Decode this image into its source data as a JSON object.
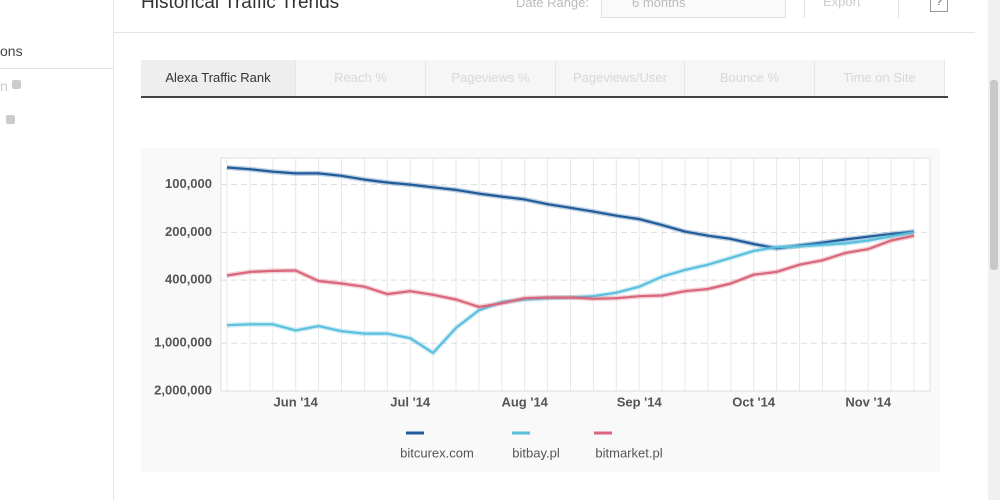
{
  "header": {
    "title": "Historical Traffic Trends",
    "date_range_label": "Date Range:",
    "date_range_value": "6 months",
    "export": "Export",
    "help": "?"
  },
  "sidebar": {
    "items": [
      "ons",
      "n"
    ]
  },
  "tabs": [
    "Alexa Traffic Rank",
    "Reach %",
    "Pageviews %",
    "Pageviews/User",
    "Bounce %",
    "Time on Site"
  ],
  "chart_data": {
    "type": "line",
    "log_scale": true,
    "grid": true,
    "categories": [
      null,
      null,
      null,
      "Jun '14",
      null,
      null,
      null,
      null,
      "Jul '14",
      null,
      null,
      null,
      null,
      "Aug '14",
      null,
      null,
      null,
      null,
      "Sep '14",
      null,
      null,
      null,
      null,
      "Oct '14",
      null,
      null,
      null,
      null,
      "Nov '14",
      null,
      null
    ],
    "ylim": [
      2000000,
      68000
    ],
    "yticks": [
      {
        "value": 100000,
        "label": "100,000"
      },
      {
        "value": 200000,
        "label": "200,000"
      },
      {
        "value": 400000,
        "label": "400,000"
      },
      {
        "value": 1000000,
        "label": "1,000,000"
      },
      {
        "value": 2000000,
        "label": "2,000,000"
      }
    ],
    "series": [
      {
        "name": "bitcurex.com",
        "color": "#1f5b99",
        "values": [
          78000,
          80000,
          83000,
          85000,
          85000,
          88000,
          93000,
          97000,
          100000,
          104000,
          108000,
          114000,
          119000,
          124000,
          133000,
          140000,
          148000,
          157000,
          165000,
          180000,
          198000,
          210000,
          220000,
          237000,
          252000,
          242000,
          232000,
          222000,
          213000,
          205000,
          198000
        ]
      },
      {
        "name": "bitbay.pl",
        "color": "#5bc0de",
        "values": [
          770000,
          760000,
          760000,
          830000,
          780000,
          840000,
          870000,
          870000,
          930000,
          1150000,
          800000,
          620000,
          550000,
          530000,
          520000,
          515000,
          505000,
          480000,
          440000,
          380000,
          345000,
          320000,
          290000,
          262000,
          248000,
          245000,
          240000,
          235000,
          225000,
          212000,
          200000
        ]
      },
      {
        "name": "bitmarket.pl",
        "color": "#d9667a",
        "values": [
          374000,
          355000,
          350000,
          348000,
          405000,
          420000,
          440000,
          490000,
          470000,
          495000,
          530000,
          590000,
          560000,
          520000,
          515000,
          515000,
          525000,
          520000,
          505000,
          500000,
          470000,
          455000,
          420000,
          370000,
          355000,
          320000,
          300000,
          270000,
          255000,
          225000,
          210000
        ]
      }
    ]
  }
}
